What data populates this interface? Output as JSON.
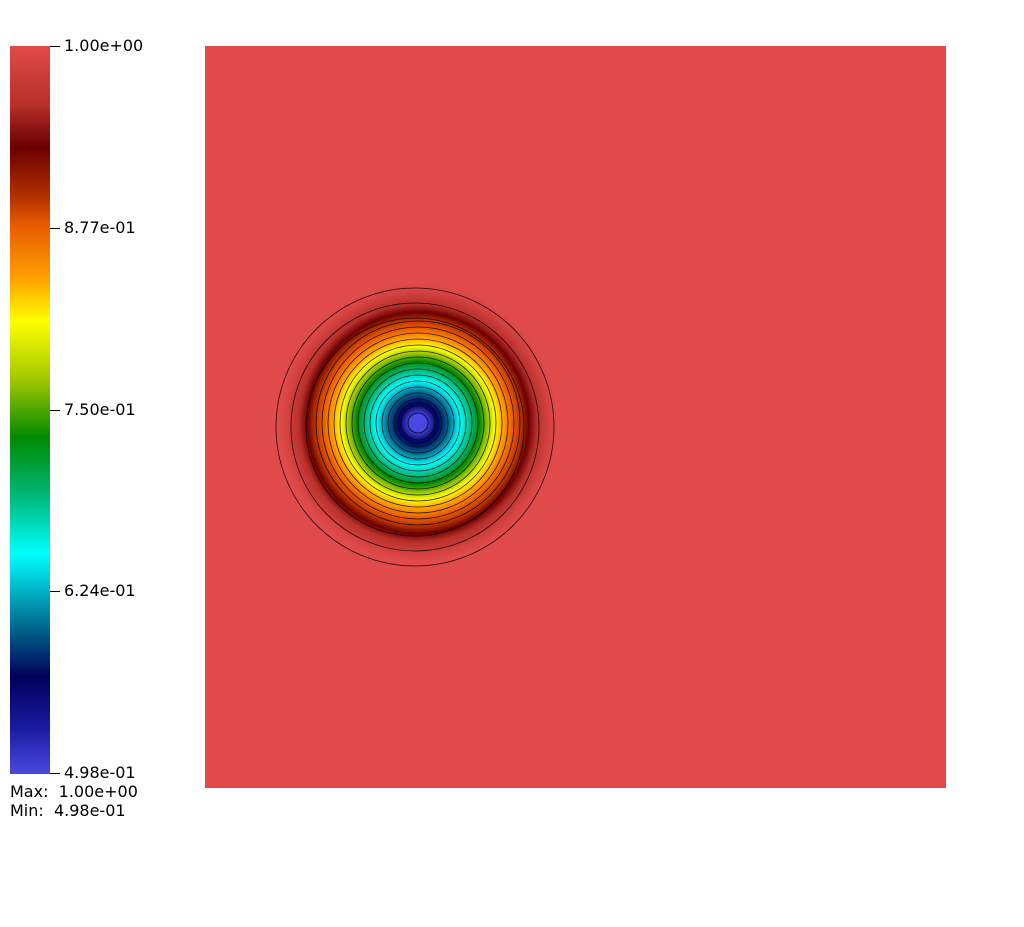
{
  "colorbar": {
    "ticks": [
      "1.00e+00",
      "8.77e-01",
      "7.50e-01",
      "6.24e-01",
      "4.98e-01"
    ],
    "tick_values": [
      1.0,
      0.877,
      0.75,
      0.624,
      0.498
    ],
    "stops": [
      {
        "value": 1.0,
        "color": "#e04a4a"
      },
      {
        "value": 0.96,
        "color": "#b8302a"
      },
      {
        "value": 0.93,
        "color": "#6a0000"
      },
      {
        "value": 0.895,
        "color": "#b53200"
      },
      {
        "value": 0.877,
        "color": "#e85a00"
      },
      {
        "value": 0.84,
        "color": "#ffa000"
      },
      {
        "value": 0.81,
        "color": "#ffff00"
      },
      {
        "value": 0.77,
        "color": "#a0c800"
      },
      {
        "value": 0.73,
        "color": "#008a00"
      },
      {
        "value": 0.69,
        "color": "#00b878"
      },
      {
        "value": 0.65,
        "color": "#00ffff"
      },
      {
        "value": 0.6,
        "color": "#006a90"
      },
      {
        "value": 0.565,
        "color": "#00005a"
      },
      {
        "value": 0.53,
        "color": "#1a1aa0"
      },
      {
        "value": 0.498,
        "color": "#4a48e0"
      }
    ]
  },
  "range": {
    "max_label": "Max:",
    "max_value": "1.00e+00",
    "min_label": "Min:",
    "min_value": "4.98e-01"
  },
  "field": {
    "background_value": 1.0,
    "min_value": 0.498,
    "contour_count": 20,
    "contour_color": "#000000"
  }
}
